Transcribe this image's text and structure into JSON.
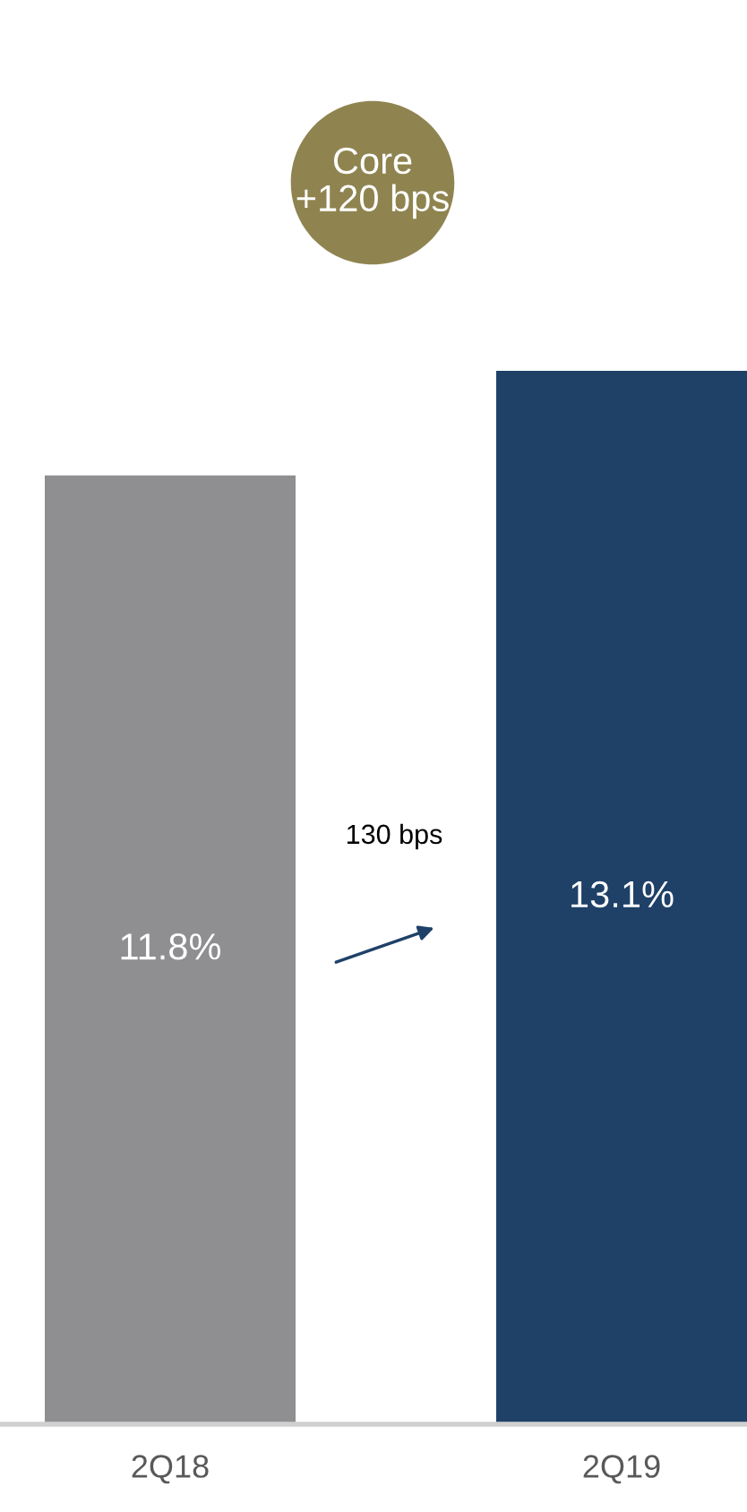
{
  "chart_data": {
    "type": "bar",
    "categories": [
      "2Q18",
      "2Q19"
    ],
    "values": [
      11.8,
      13.1
    ],
    "colors": [
      "#8f8f91",
      "#1f4168"
    ],
    "value_labels": [
      "11.8%",
      "13.1%"
    ],
    "annotations": [
      "Core\n+120 bps",
      "130 bps"
    ],
    "grid": false,
    "legend": false
  }
}
